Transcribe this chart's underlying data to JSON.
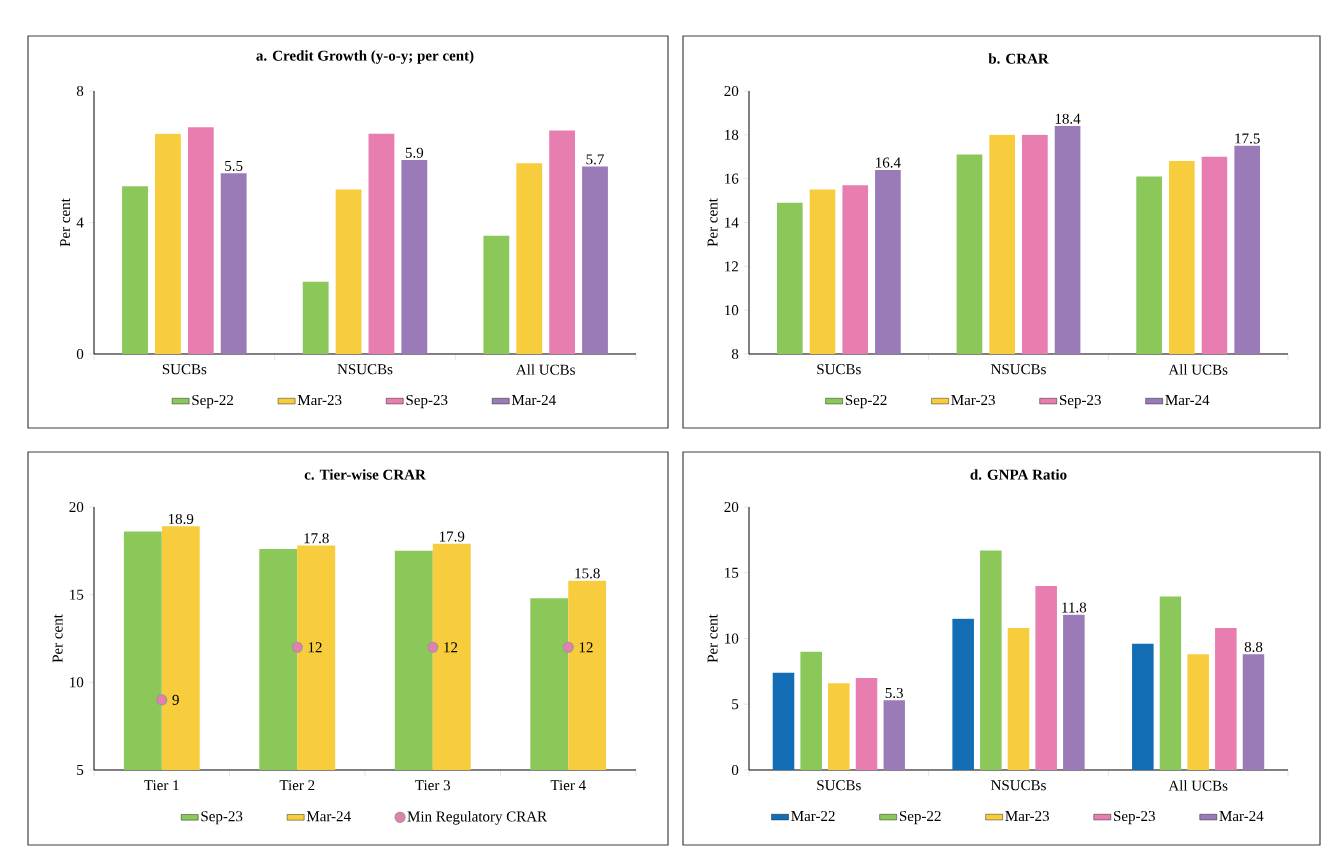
{
  "chart_data": [
    {
      "type": "bar",
      "title": "a. Credit Growth (y-o-y; per cent)",
      "ylabel": "Per cent",
      "categories": [
        "SUCBs",
        "NSUCBs",
        "All UCBs"
      ],
      "ylim": [
        0,
        8
      ],
      "yticks": [
        0,
        4,
        8
      ],
      "legend": "bottom",
      "series": [
        {
          "name": "Sep-22",
          "color": "#8cc75a",
          "values": [
            5.1,
            2.2,
            3.6
          ]
        },
        {
          "name": "Mar-23",
          "color": "#f7cd3d",
          "values": [
            6.7,
            5.0,
            5.8
          ]
        },
        {
          "name": "Sep-23",
          "color": "#e87daf",
          "values": [
            6.9,
            6.7,
            6.8
          ]
        },
        {
          "name": "Mar-24",
          "color": "#9a7bb7",
          "values": [
            5.5,
            5.9,
            5.7
          ],
          "value_labels": [
            "5.5",
            "5.9",
            "5.7"
          ]
        }
      ]
    },
    {
      "type": "bar",
      "title": "b. CRAR",
      "ylabel": "Per cent",
      "categories": [
        "SUCBs",
        "NSUCBs",
        "All UCBs"
      ],
      "ylim": [
        8,
        20
      ],
      "yticks": [
        8,
        10,
        12,
        14,
        16,
        18,
        20
      ],
      "legend": "bottom",
      "series": [
        {
          "name": "Sep-22",
          "color": "#8cc75a",
          "values": [
            14.9,
            17.1,
            16.1
          ]
        },
        {
          "name": "Mar-23",
          "color": "#f7cd3d",
          "values": [
            15.5,
            18.0,
            16.8
          ]
        },
        {
          "name": "Sep-23",
          "color": "#e87daf",
          "values": [
            15.7,
            18.0,
            17.0
          ]
        },
        {
          "name": "Mar-24",
          "color": "#9a7bb7",
          "values": [
            16.4,
            18.4,
            17.5
          ],
          "value_labels": [
            "16.4",
            "18.4",
            "17.5"
          ]
        }
      ]
    },
    {
      "type": "bar",
      "title": "c. Tier-wise CRAR",
      "ylabel": "Per cent",
      "marker": "circle",
      "categories": [
        "Tier 1",
        "Tier 2",
        "Tier 3",
        "Tier 4"
      ],
      "ylim": [
        5,
        20
      ],
      "yticks": [
        5,
        10,
        15,
        20
      ],
      "legend": "bottom",
      "series": [
        {
          "name": "Sep-23",
          "color": "#8cc75a",
          "values": [
            18.6,
            17.6,
            17.5,
            14.8
          ]
        },
        {
          "name": "Mar-24",
          "color": "#f7cd3d",
          "values": [
            18.9,
            17.8,
            17.9,
            15.8
          ],
          "value_labels": [
            "18.9",
            "17.8",
            "17.9",
            "15.8"
          ]
        },
        {
          "name": "Min Regulatory CRAR",
          "type": "scatter",
          "color": "#e87daf",
          "x": [
            "Tier 1",
            "Tier 2",
            "Tier 3",
            "Tier 4"
          ],
          "values": [
            9,
            12,
            12,
            12
          ],
          "value_labels": [
            "9",
            "12",
            "12",
            "12"
          ]
        }
      ]
    },
    {
      "type": "bar",
      "title": "d. GNPA Ratio",
      "ylabel": "Per cent",
      "categories": [
        "SUCBs",
        "NSUCBs",
        "All UCBs"
      ],
      "ylim": [
        0,
        20
      ],
      "yticks": [
        0,
        5,
        10,
        15,
        20
      ],
      "legend": "bottom",
      "series": [
        {
          "name": "Mar-22",
          "color": "#126db5",
          "values": [
            7.4,
            11.5,
            9.6
          ]
        },
        {
          "name": "Sep-22",
          "color": "#8cc75a",
          "values": [
            9.0,
            16.7,
            13.2
          ]
        },
        {
          "name": "Mar-23",
          "color": "#f7cd3d",
          "values": [
            6.6,
            10.8,
            8.8
          ]
        },
        {
          "name": "Sep-23",
          "color": "#e87daf",
          "values": [
            7.0,
            14.0,
            10.8
          ]
        },
        {
          "name": "Mar-24",
          "color": "#9a7bb7",
          "values": [
            5.3,
            11.8,
            8.8
          ],
          "value_labels": [
            "5.3",
            "11.8",
            "8.8"
          ]
        }
      ]
    }
  ]
}
